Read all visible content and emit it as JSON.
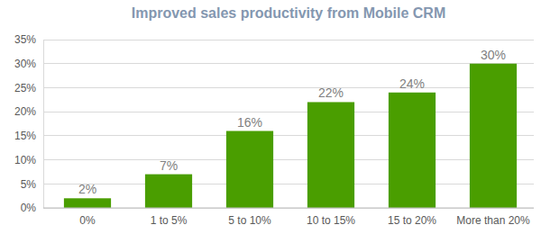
{
  "chart_data": {
    "type": "bar",
    "title": "Improved sales productivity from Mobile CRM",
    "categories": [
      "0%",
      "1 to 5%",
      "5 to 10%",
      "10 to 15%",
      "15 to 20%",
      "More than 20%"
    ],
    "values": [
      2,
      7,
      16,
      22,
      24,
      30
    ],
    "value_labels": [
      "2%",
      "7%",
      "16%",
      "22%",
      "24%",
      "30%"
    ],
    "color": "#4a9e00",
    "ylim": [
      0,
      35
    ],
    "yticks": [
      {
        "value": 0,
        "label": "0%"
      },
      {
        "value": 5,
        "label": "5%"
      },
      {
        "value": 10,
        "label": "10%"
      },
      {
        "value": 15,
        "label": "15%"
      },
      {
        "value": 20,
        "label": "20%"
      },
      {
        "value": 25,
        "label": "25%"
      },
      {
        "value": 30,
        "label": "30%"
      },
      {
        "value": 35,
        "label": "35%"
      }
    ],
    "grid": true,
    "data_labels": true
  }
}
